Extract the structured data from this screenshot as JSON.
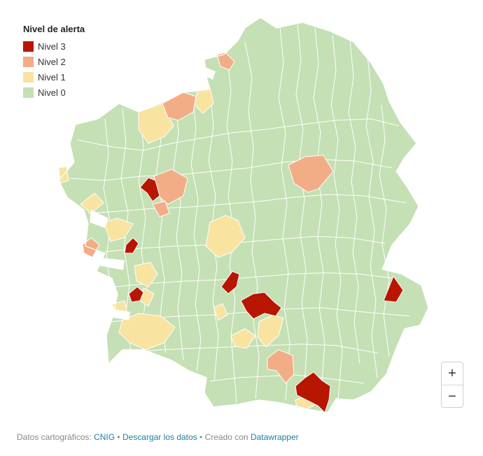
{
  "legend": {
    "title": "Nivel de alerta",
    "items": [
      {
        "label": "Nivel 3",
        "color": "#b81600"
      },
      {
        "label": "Nivel 2",
        "color": "#f2ad87"
      },
      {
        "label": "Nivel 1",
        "color": "#f8e3a0"
      },
      {
        "label": "Nivel 0",
        "color": "#c4e0b4"
      }
    ]
  },
  "controls": {
    "zoom_in": "+",
    "zoom_out": "−"
  },
  "footer": {
    "prefix": "Datos cartográficos:",
    "source_link": "CNIG",
    "sep1": "•",
    "download_link": "Descargar los datos",
    "sep2": "•",
    "created_text": "Creado con",
    "tool_link": "Datawrapper"
  }
}
